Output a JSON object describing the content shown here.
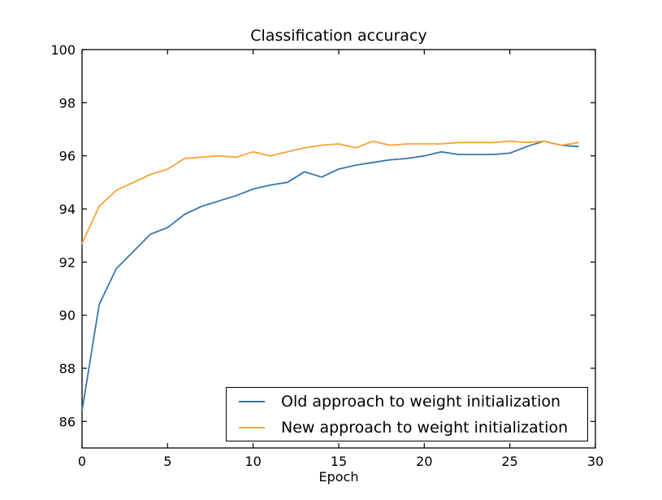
{
  "chart_data": {
    "type": "line",
    "title": "Classification accuracy",
    "xlabel": "Epoch",
    "ylabel": "",
    "xlim": [
      0,
      30
    ],
    "ylim": [
      85,
      100
    ],
    "xticks": [
      0,
      5,
      10,
      15,
      20,
      25,
      30
    ],
    "yticks": [
      86,
      88,
      90,
      92,
      94,
      96,
      98,
      100
    ],
    "grid": false,
    "legend_position": "lower right",
    "background_color": "#ffffff",
    "axis_color": "#000000",
    "x": [
      0,
      1,
      2,
      3,
      4,
      5,
      6,
      7,
      8,
      9,
      10,
      11,
      12,
      13,
      14,
      15,
      16,
      17,
      18,
      19,
      20,
      21,
      22,
      23,
      24,
      25,
      26,
      27,
      28,
      29
    ],
    "series": [
      {
        "name": "Old approach to weight initialization",
        "color": "#3b75af",
        "values": [
          86.4,
          90.4,
          91.75,
          92.4,
          93.05,
          93.3,
          93.8,
          94.1,
          94.3,
          94.5,
          94.75,
          94.9,
          95.0,
          95.4,
          95.2,
          95.5,
          95.65,
          95.75,
          95.85,
          95.9,
          96.0,
          96.15,
          96.05,
          96.05,
          96.05,
          96.1,
          96.35,
          96.55,
          96.4,
          96.35
        ]
      },
      {
        "name": "New approach to weight initialization",
        "color": "#faa23c",
        "values": [
          92.7,
          94.1,
          94.7,
          95.0,
          95.3,
          95.5,
          95.9,
          95.95,
          96.0,
          95.95,
          96.15,
          96.0,
          96.15,
          96.3,
          96.4,
          96.45,
          96.3,
          96.55,
          96.4,
          96.45,
          96.45,
          96.45,
          96.5,
          96.5,
          96.5,
          96.55,
          96.5,
          96.55,
          96.4,
          96.5
        ]
      }
    ]
  }
}
